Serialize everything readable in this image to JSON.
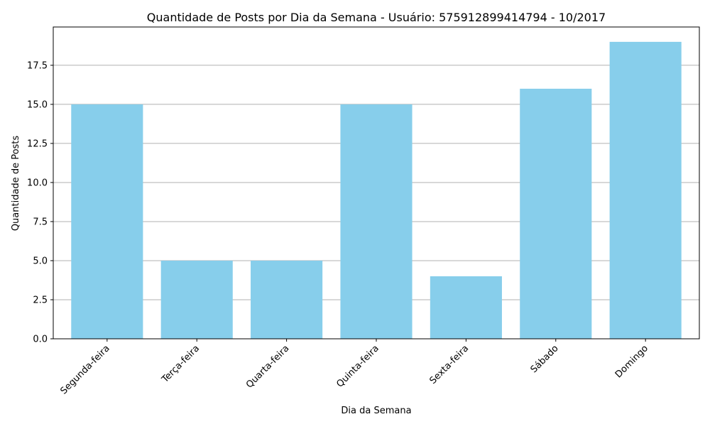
{
  "chart_data": {
    "type": "bar",
    "title": "Quantidade de Posts por Dia da Semana - Usuário: 575912899414794 - 10/2017",
    "xlabel": "Dia da Semana",
    "ylabel": "Quantidade de Posts",
    "categories": [
      "Segunda-feira",
      "Terça-feira",
      "Quarta-feira",
      "Quinta-feira",
      "Sexta-feira",
      "Sábado",
      "Domingo"
    ],
    "values": [
      15,
      5,
      5,
      15,
      4,
      16,
      19
    ],
    "ylim": [
      0,
      19.95
    ],
    "yticks": [
      "0.0",
      "2.5",
      "5.0",
      "7.5",
      "10.0",
      "12.5",
      "15.0",
      "17.5"
    ],
    "grid": "y-axis",
    "bar_color": "#87ceeb",
    "grid_color": "#b0b0b0"
  }
}
